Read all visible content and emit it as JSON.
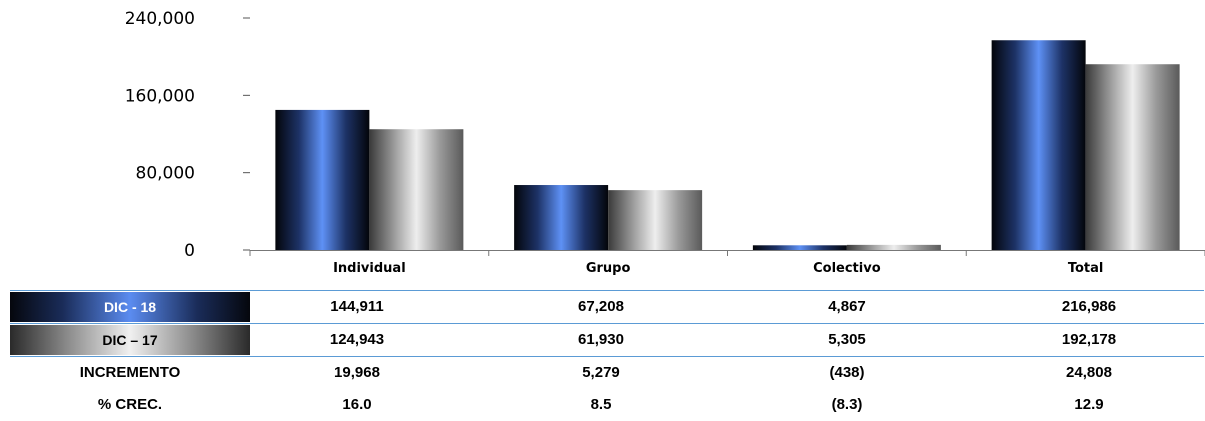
{
  "chart_data": {
    "type": "bar",
    "categories": [
      "Individual",
      "Grupo",
      "Colectivo",
      "Total"
    ],
    "series": [
      {
        "values": [
          144911,
          67208,
          4867,
          216986
        ]
      },
      {
        "values": [
          124943,
          61930,
          5305,
          192178
        ]
      }
    ],
    "y_ticks": [
      "0",
      "80,000",
      "160,000",
      "240,000"
    ],
    "ylim": [
      0,
      240000
    ],
    "grid": false,
    "colors": {
      "series_a": "#4a7de0",
      "series_b": "#c8c8c8"
    }
  },
  "table": {
    "rows": [
      {
        "label": "DIC -  18",
        "cells": [
          "144,911",
          "67,208",
          "4,867",
          "216,986"
        ]
      },
      {
        "label": "DIC – 17",
        "cells": [
          "124,943",
          "61,930",
          "5,305",
          "192,178"
        ]
      },
      {
        "label": "INCREMENTO",
        "cells": [
          "19,968",
          "5,279",
          "(438)",
          "24,808"
        ]
      },
      {
        "label": "% CREC.",
        "cells": [
          "16.0",
          "8.5",
          "(8.3)",
          "12.9"
        ]
      }
    ]
  }
}
